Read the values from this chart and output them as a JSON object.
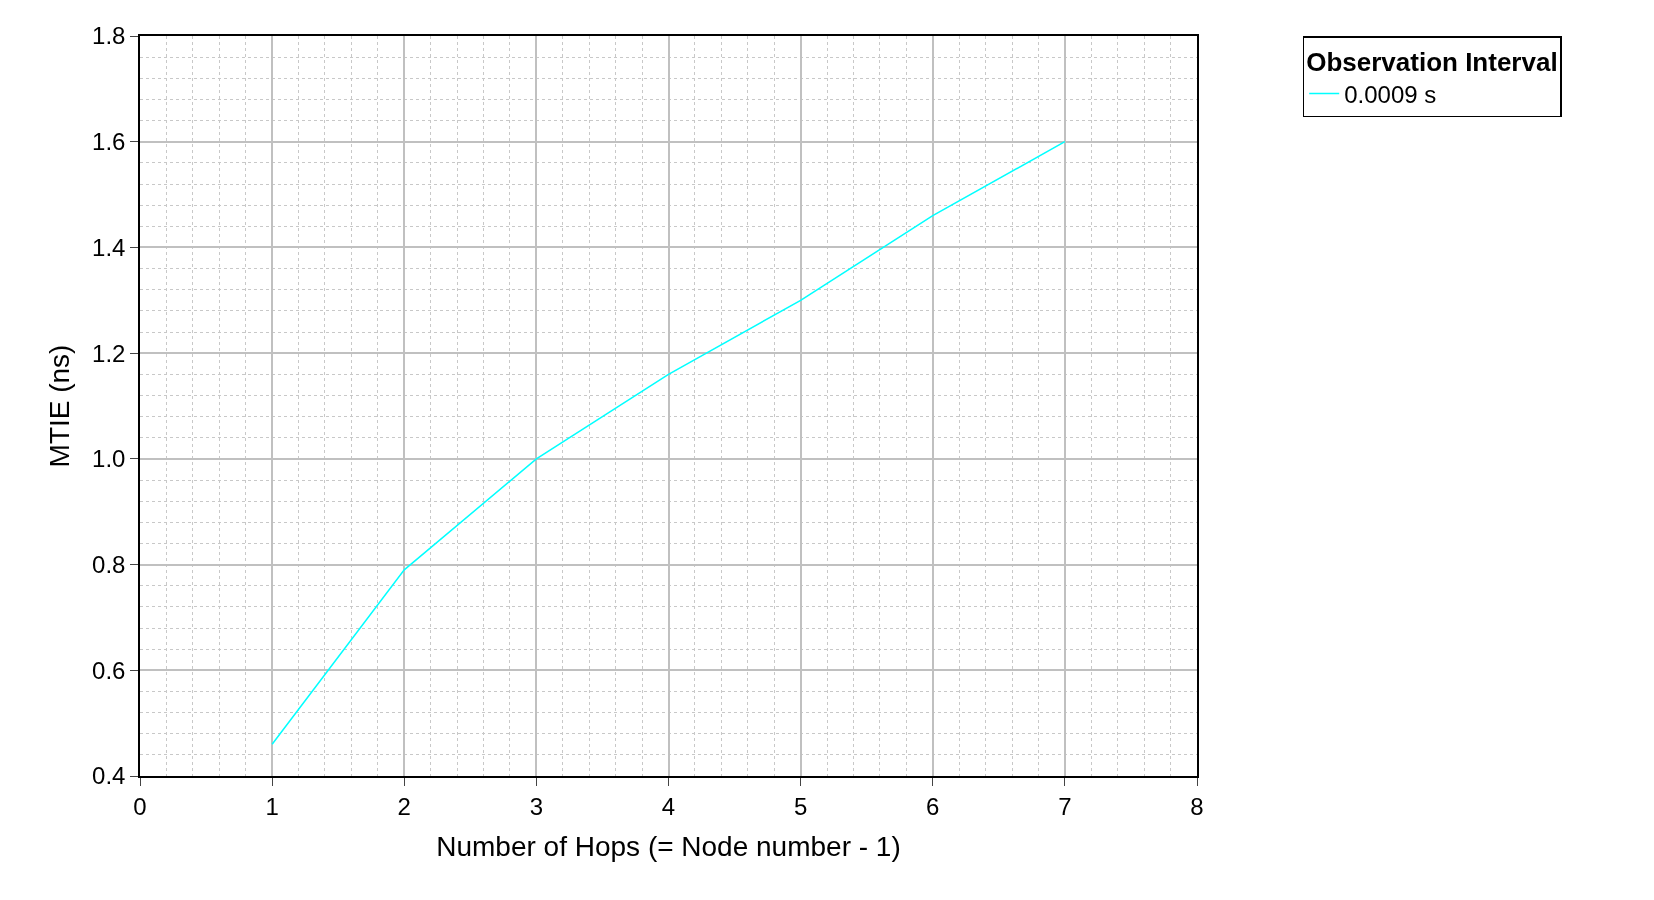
{
  "chart_data": {
    "type": "line",
    "xlabel": "Number of Hops (= Node number - 1)",
    "ylabel": "MTIE (ns)",
    "legend_title": "Observation Interval",
    "x": [
      1,
      2,
      3,
      4,
      5,
      6,
      7
    ],
    "series": [
      {
        "name": "0.0009 s",
        "color": "#00ffff",
        "values": [
          0.46,
          0.79,
          1.0,
          1.16,
          1.3,
          1.46,
          1.6
        ]
      }
    ],
    "xlim": [
      0,
      8
    ],
    "xticks": [
      0,
      1,
      2,
      3,
      4,
      5,
      6,
      7,
      8
    ],
    "ylim": [
      0.4,
      1.8
    ],
    "yticks": [
      {
        "value": 0.4,
        "label": "0.4"
      },
      {
        "value": 0.6,
        "label": "0.6"
      },
      {
        "value": 0.8,
        "label": "0.8"
      },
      {
        "value": 1.0,
        "label": "1.0"
      },
      {
        "value": 1.2,
        "label": "1.2"
      },
      {
        "value": 1.4,
        "label": "1.4"
      },
      {
        "value": 1.6,
        "label": "1.6"
      },
      {
        "value": 1.8,
        "label": "1.8"
      }
    ],
    "grid": true,
    "legend": "top right",
    "marker": "none",
    "line_style": "solid"
  }
}
